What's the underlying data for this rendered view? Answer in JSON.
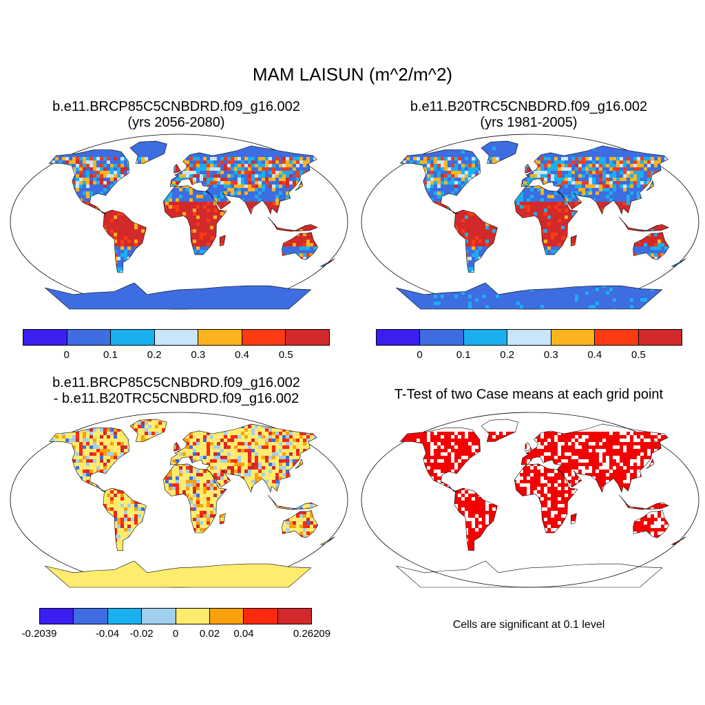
{
  "main_title": "MAM LAISUN (m^2/m^2)",
  "panels": [
    {
      "line1": "b.e11.BRCP85C5CNBDRD.f09_g16.002",
      "line2": "(yrs 2056-2080)"
    },
    {
      "line1": "b.e11.B20TRC5CNBDRD.f09_g16.002",
      "line2": "(yrs 1981-2005)"
    },
    {
      "line1": "b.e11.BRCP85C5CNBDRD.f09_g16.002",
      "line2": "- b.e11.B20TRC5CNBDRD.f09_g16.002"
    },
    {
      "line1": "T-Test of two Case means at each grid point",
      "line2": ""
    }
  ],
  "colorbars": {
    "abs": {
      "colors": [
        "#3a1ff0",
        "#3d6de0",
        "#1ab0f0",
        "#c8e6f8",
        "#fbb41d",
        "#fc3b12",
        "#d22a2a"
      ],
      "labels": [
        "0",
        "0.1",
        "0.2",
        "0.3",
        "0.4",
        "0.5"
      ]
    },
    "diff": {
      "colors": [
        "#3a1ff0",
        "#3d6de0",
        "#1ab0f0",
        "#a0d0ee",
        "#ffec6e",
        "#fba10c",
        "#fd2a10",
        "#d22a2a"
      ],
      "labels": [
        "-0.2039",
        "-0.04",
        "-0.02",
        "0",
        "0.02",
        "0.04",
        "0.26209"
      ]
    }
  },
  "note": "Cells are significant at 0.1 level",
  "map_colors": {
    "ocean": "#ffffff",
    "ttest_sig": "#f50000"
  }
}
